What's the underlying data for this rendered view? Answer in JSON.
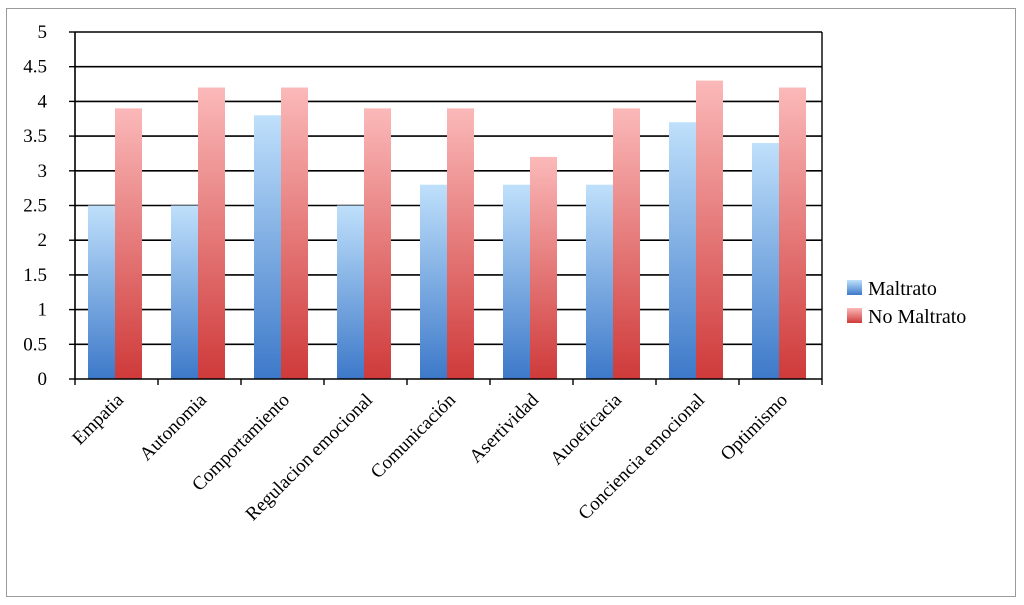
{
  "chart_data": {
    "type": "bar",
    "categories": [
      "Empatia",
      "Autonomia",
      "Comportamiento",
      "Regulacion emocional",
      "Comunicación",
      "Asertividad",
      "Auoeficacia",
      "Conciencia emocional",
      "Optimismo"
    ],
    "series": [
      {
        "name": "Maltrato",
        "values": [
          2.5,
          2.5,
          3.8,
          2.5,
          2.8,
          2.8,
          2.8,
          3.7,
          3.4
        ],
        "color_top": "#bfe0fb",
        "color_bottom": "#3d79c9"
      },
      {
        "name": "No Maltrato",
        "values": [
          3.9,
          4.2,
          4.2,
          3.9,
          3.9,
          3.2,
          3.9,
          4.3,
          4.2
        ],
        "color_top": "#fbb9b9",
        "color_bottom": "#cf3a3a"
      }
    ],
    "ylim": [
      0,
      5
    ],
    "yticks": [
      0,
      0.5,
      1,
      1.5,
      2,
      2.5,
      3,
      3.5,
      4,
      4.5,
      5
    ],
    "ytick_labels": [
      "0",
      "0.5",
      "1",
      "1.5",
      "2",
      "2.5",
      "3",
      "3.5",
      "4",
      "4.5",
      "5"
    ],
    "grid": true,
    "legend_position": "right",
    "title": "",
    "xlabel": "",
    "ylabel": ""
  }
}
